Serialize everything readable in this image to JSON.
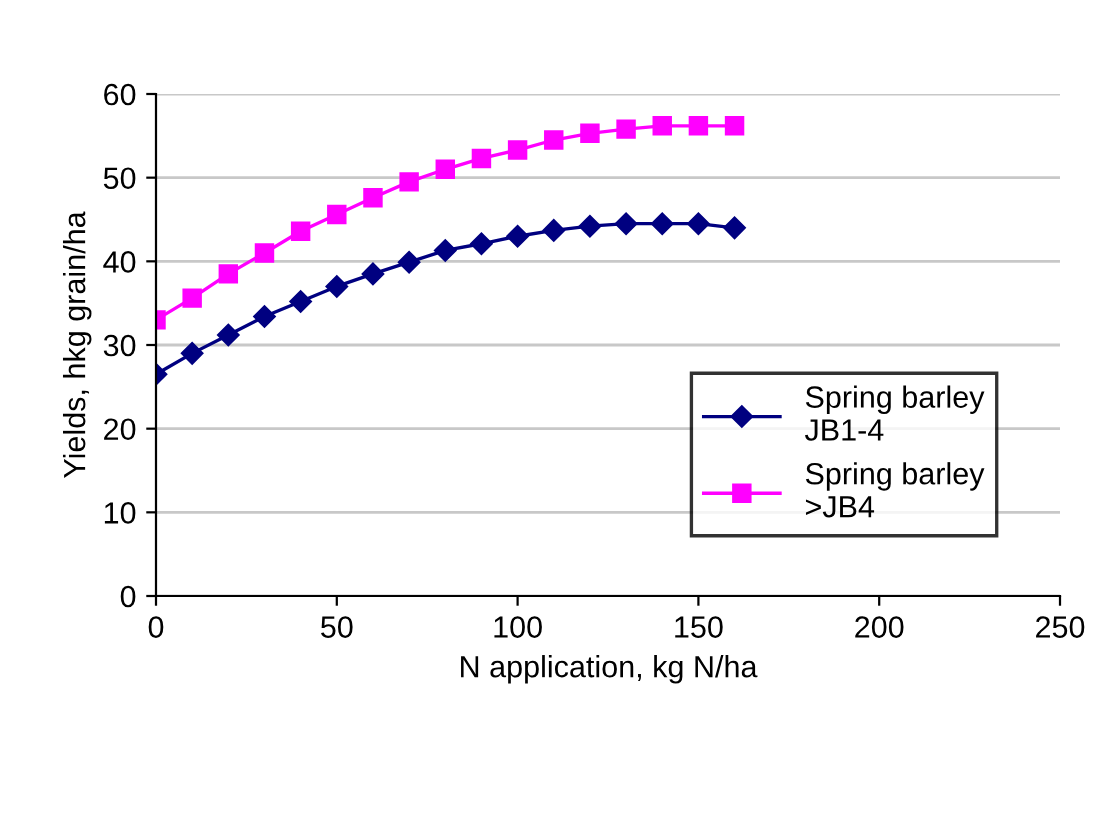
{
  "chart_data": {
    "type": "line",
    "xlabel": "N application, kg N/ha",
    "ylabel": "Yields, hkg grain/ha",
    "x": [
      0,
      10,
      20,
      30,
      40,
      50,
      60,
      70,
      80,
      90,
      100,
      110,
      120,
      130,
      140,
      150,
      160
    ],
    "series": [
      {
        "name": "Spring barley\nJB1-4",
        "color": "#000080",
        "marker": "diamond",
        "values": [
          26.5,
          29,
          31.2,
          33.4,
          35.2,
          37,
          38.5,
          39.9,
          41.3,
          42.1,
          43,
          43.7,
          44.2,
          44.5,
          44.5,
          44.5,
          44
        ]
      },
      {
        "name": "Spring barley\n>JB4",
        "color": "#ff00ff",
        "marker": "square",
        "values": [
          33,
          35.6,
          38.5,
          41,
          43.6,
          45.6,
          47.6,
          49.5,
          51,
          52.3,
          53.3,
          54.5,
          55.3,
          55.8,
          56.2,
          56.2,
          56.2
        ]
      }
    ],
    "xlim": [
      0,
      250
    ],
    "xticks": [
      0,
      50,
      100,
      150,
      200,
      250
    ],
    "ylim": [
      0,
      60
    ],
    "yticks": [
      0,
      10,
      20,
      30,
      40,
      50,
      60
    ],
    "grid": "y",
    "legend": "bottom right",
    "line_style": "solid"
  }
}
